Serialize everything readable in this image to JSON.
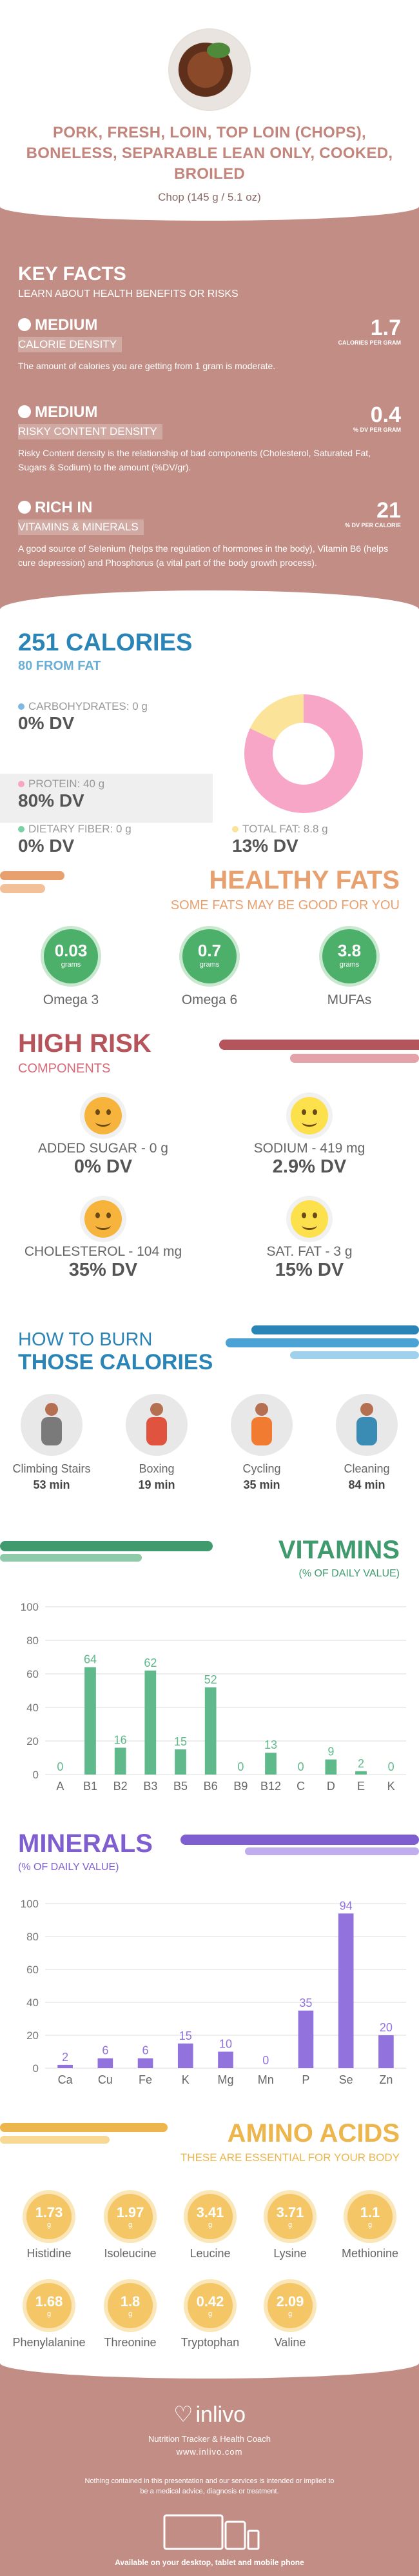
{
  "header": {
    "title": "PORK, FRESH, LOIN, TOP LOIN (CHOPS), BONELESS, SEPARABLE LEAN ONLY, COOKED, BROILED",
    "serving": "Chop (145 g / 5.1 oz)"
  },
  "key_facts": {
    "title": "KEY FACTS",
    "subtitle": "LEARN ABOUT HEALTH BENEFITS OR RISKS",
    "items": [
      {
        "level": "MEDIUM",
        "label": "CALORIE DENSITY",
        "value": "1.7",
        "unit": "CALORIES PER GRAM",
        "description": "The amount of calories you are getting from 1 gram is moderate."
      },
      {
        "level": "MEDIUM",
        "label": "RISKY CONTENT DENSITY",
        "value": "0.4",
        "unit": "% DV PER GRAM",
        "description": "Risky Content density is the relationship of bad components (Cholesterol, Saturated Fat, Sugars & Sodium) to the amount (%DV/gr)."
      },
      {
        "level": "RICH  IN",
        "label": "VITAMINS & MINERALS",
        "value": "21",
        "unit": "% DV PER CALORIE",
        "description": "A good source of Selenium (helps the regulation of hormones in the body), Vitamin B6 (helps cure depression) and Phosphorus (a vital part of the body growth process)."
      }
    ]
  },
  "calories": {
    "title": "251 CALORIES",
    "subtitle": "80 FROM FAT",
    "carbs": {
      "label": "CARBOHYDRATES: 0 g",
      "dv": "0% DV"
    },
    "protein": {
      "label": "PROTEIN: 40 g",
      "dv": "80% DV"
    },
    "fiber": {
      "label": "DIETARY FIBER: 0 g",
      "dv": "0% DV"
    },
    "fat": {
      "label": "TOTAL FAT: 8.8 g",
      "dv": "13% DV"
    },
    "donut": {
      "protein_fraction": 0.82,
      "fat_fraction": 0.18,
      "carbs_fraction": 0.0
    },
    "colors": {
      "protein": "#f7a6c8",
      "fat": "#fbe39a",
      "carbs": "#7fb8e0",
      "fiber": "#7dd1a8"
    }
  },
  "healthy_fats": {
    "title": "HEALTHY FATS",
    "subtitle": "SOME FATS MAY BE GOOD FOR YOU",
    "unit": "grams",
    "items": [
      {
        "value": "0.03",
        "name": "Omega 3"
      },
      {
        "value": "0.7",
        "name": "Omega 6"
      },
      {
        "value": "3.8",
        "name": "MUFAs"
      }
    ]
  },
  "high_risk": {
    "title": "HIGH RISK",
    "subtitle": "COMPONENTS",
    "items": [
      {
        "label": "ADDED SUGAR - 0 g",
        "dv": "0% DV"
      },
      {
        "label": "SODIUM - 419 mg",
        "dv": "2.9% DV"
      },
      {
        "label": "CHOLESTEROL - 104 mg",
        "dv": "35% DV"
      },
      {
        "label": "SAT. FAT - 3 g",
        "dv": "15% DV"
      }
    ]
  },
  "burn": {
    "title_line1": "HOW TO BURN",
    "title_line2": "THOSE CALORIES",
    "items": [
      {
        "name": "Climbing Stairs",
        "minutes": "53 min",
        "icon": "stairs-icon"
      },
      {
        "name": "Boxing",
        "minutes": "19 min",
        "icon": "boxing-icon"
      },
      {
        "name": "Cycling",
        "minutes": "35 min",
        "icon": "cycling-icon"
      },
      {
        "name": "Cleaning",
        "minutes": "84 min",
        "icon": "cleaning-icon"
      }
    ]
  },
  "vitamins": {
    "title": "VITAMINS",
    "subtitle": "(% OF DAILY VALUE)"
  },
  "minerals": {
    "title": "MINERALS",
    "subtitle": "(% OF DAILY VALUE)"
  },
  "chart_data": [
    {
      "type": "bar",
      "categories": [
        "A",
        "B1",
        "B2",
        "B3",
        "B5",
        "B6",
        "B9",
        "B12",
        "C",
        "D",
        "E",
        "K"
      ],
      "values": [
        0,
        64,
        16,
        62,
        15,
        52,
        0,
        13,
        0,
        9,
        2,
        0
      ],
      "ylim": [
        0,
        100
      ],
      "yticks": [
        0,
        20,
        40,
        60,
        80,
        100
      ],
      "color": "#5fb98a",
      "grid": true
    },
    {
      "type": "bar",
      "categories": [
        "Ca",
        "Cu",
        "Fe",
        "K",
        "Mg",
        "Mn",
        "P",
        "Se",
        "Zn"
      ],
      "values": [
        2,
        6,
        6,
        15,
        10,
        0,
        35,
        94,
        20
      ],
      "ylim": [
        0,
        100
      ],
      "yticks": [
        0,
        20,
        40,
        60,
        80,
        100
      ],
      "color": "#9272dd",
      "grid": true
    }
  ],
  "amino": {
    "title": "AMINO ACIDS",
    "subtitle": "THESE ARE ESSENTIAL FOR YOUR BODY",
    "unit": "g",
    "items": [
      {
        "value": "1.73",
        "name": "Histidine"
      },
      {
        "value": "1.97",
        "name": "Isoleucine"
      },
      {
        "value": "3.41",
        "name": "Leucine"
      },
      {
        "value": "3.71",
        "name": "Lysine"
      },
      {
        "value": "1.1",
        "name": "Methionine"
      },
      {
        "value": "1.68",
        "name": "Phenylalanine"
      },
      {
        "value": "1.8",
        "name": "Threonine"
      },
      {
        "value": "0.42",
        "name": "Tryptophan"
      },
      {
        "value": "2.09",
        "name": "Valine"
      }
    ]
  },
  "footer": {
    "brand": "inlivo",
    "tagline": "Nutrition Tracker & Health Coach",
    "site": "www.inlivo.com",
    "disclaimer": "Nothing contained in this presentation and our services is intended or implied to be a medical advice, diagnosis or treatment.",
    "available": "Available on your desktop, tablet and mobile phone"
  }
}
